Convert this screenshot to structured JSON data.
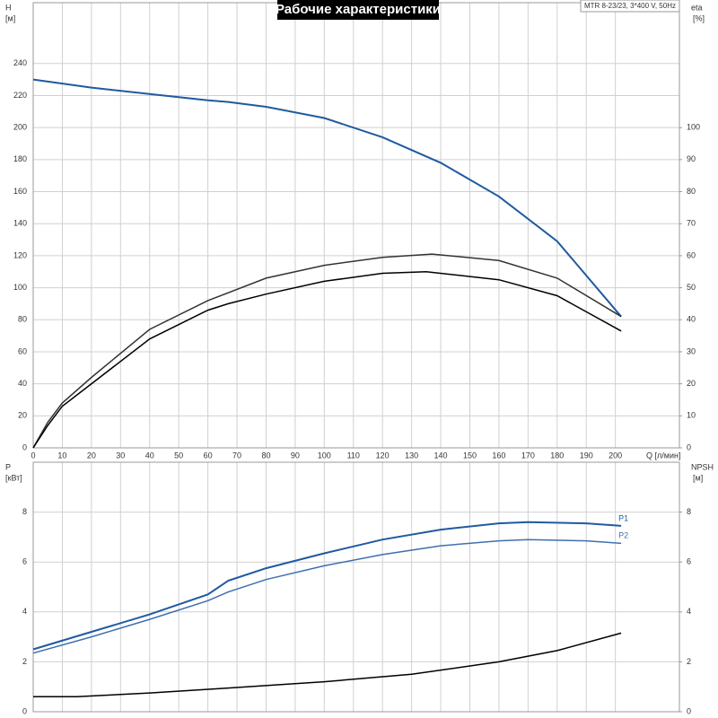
{
  "chart_data": [
    {
      "type": "line",
      "title": "Рабочие характеристики",
      "subtitle": "MTR 8-23/23, 3*400 V, 50Hz",
      "xlabel": "Q [л/мин]",
      "ylabel": "H",
      "ylabel_unit": "[м]",
      "y2label": "eta",
      "y2label_unit": "[%]",
      "xlim": [
        0,
        222
      ],
      "xticks": [
        0,
        10,
        20,
        30,
        40,
        50,
        60,
        70,
        80,
        90,
        100,
        110,
        120,
        130,
        140,
        150,
        160,
        170,
        180,
        190,
        200
      ],
      "ylim": [
        0,
        278
      ],
      "yticks": [
        0,
        20,
        40,
        60,
        80,
        100,
        120,
        140,
        160,
        180,
        200,
        220,
        240
      ],
      "y2lim": [
        0,
        139
      ],
      "y2ticks": [
        0,
        10,
        20,
        30,
        40,
        50,
        60,
        70,
        80,
        90,
        100
      ],
      "grid": true,
      "series": [
        {
          "color": "#1f5aa0",
          "x": [
            0,
            20,
            40,
            60,
            67,
            80,
            100,
            120,
            140,
            160,
            180,
            202
          ],
          "values": [
            230,
            225,
            221,
            217,
            216,
            213,
            206,
            194,
            178,
            157,
            129,
            82
          ]
        },
        {
          "color": "#333333",
          "axis": "y2",
          "x": [
            0,
            5,
            10,
            20,
            40,
            60,
            80,
            100,
            120,
            137,
            160,
            180,
            202
          ],
          "values": [
            0,
            8,
            14,
            22,
            37,
            46,
            53,
            57,
            59.5,
            60.5,
            58.5,
            53,
            41
          ]
        },
        {
          "color": "#000000",
          "axis": "y2",
          "x": [
            0,
            5,
            10,
            20,
            40,
            60,
            67,
            80,
            100,
            120,
            135,
            160,
            180,
            202
          ],
          "values": [
            0,
            7,
            13,
            20,
            34,
            43,
            45,
            48,
            52,
            54.5,
            55,
            52.5,
            47.5,
            36.5
          ]
        }
      ]
    },
    {
      "type": "line",
      "ylabel": "P",
      "ylabel_unit": "[кВт]",
      "y2label": "NPSH",
      "y2label_unit": "[м]",
      "xlim": [
        0,
        222
      ],
      "xticks": [
        0,
        10,
        20,
        30,
        40,
        50,
        60,
        70,
        80,
        90,
        100,
        110,
        120,
        130,
        140,
        150,
        160,
        170,
        180,
        190,
        200
      ],
      "ylim": [
        0,
        10
      ],
      "yticks": [
        0,
        2,
        4,
        6,
        8
      ],
      "y2lim": [
        0,
        10
      ],
      "y2ticks": [
        0,
        2,
        4,
        6,
        8
      ],
      "grid": true,
      "series": [
        {
          "name": "P1",
          "color": "#1f5aa0",
          "x": [
            0,
            20,
            40,
            60,
            67,
            80,
            100,
            120,
            140,
            160,
            170,
            190,
            202
          ],
          "values": [
            2.5,
            3.2,
            3.9,
            4.7,
            5.25,
            5.75,
            6.35,
            6.9,
            7.3,
            7.55,
            7.6,
            7.55,
            7.45
          ]
        },
        {
          "name": "P2",
          "color": "#3f6fae",
          "x": [
            0,
            20,
            40,
            60,
            67,
            80,
            100,
            120,
            140,
            160,
            170,
            190,
            202
          ],
          "values": [
            2.35,
            3.0,
            3.7,
            4.45,
            4.8,
            5.3,
            5.85,
            6.3,
            6.65,
            6.85,
            6.9,
            6.85,
            6.75
          ]
        },
        {
          "color": "#000000",
          "axis": "y2",
          "x": [
            0,
            15,
            40,
            67,
            100,
            130,
            160,
            180,
            202
          ],
          "values": [
            0.6,
            0.6,
            0.75,
            0.95,
            1.2,
            1.5,
            2.0,
            2.45,
            3.15
          ]
        }
      ]
    }
  ]
}
